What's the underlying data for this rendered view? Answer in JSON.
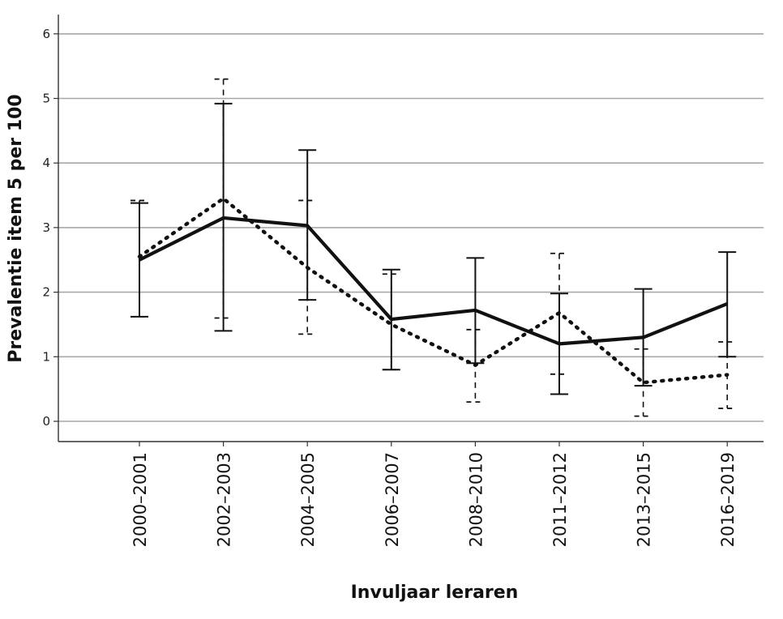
{
  "chart_data": {
    "type": "line",
    "xlabel": "Invuljaar leraren",
    "ylabel": "Prevalentie item 5 per 100",
    "categories": [
      "2000–2001",
      "2002–2003",
      "2004–2005",
      "2006–2007",
      "2008–2010",
      "2011–2012",
      "2013–2015",
      "2016–2019"
    ],
    "yticks": [
      0,
      1,
      2,
      3,
      4,
      5,
      6
    ],
    "ylim": [
      -0.3,
      6.3
    ],
    "grid": true,
    "series": [
      {
        "style": "solid",
        "values": [
          2.5,
          3.15,
          3.03,
          1.58,
          1.72,
          1.2,
          1.3,
          1.82
        ],
        "error_low": [
          1.62,
          1.4,
          1.88,
          0.8,
          0.9,
          0.42,
          0.55,
          1.0
        ],
        "error_high": [
          3.38,
          4.92,
          4.2,
          2.35,
          2.53,
          1.98,
          2.05,
          2.62
        ]
      },
      {
        "style": "dotted",
        "values": [
          2.55,
          3.45,
          2.38,
          1.5,
          0.87,
          1.68,
          0.6,
          0.72
        ],
        "error_low": [
          1.62,
          1.6,
          1.35,
          0.8,
          0.3,
          0.73,
          0.08,
          0.2
        ],
        "error_high": [
          3.42,
          5.3,
          3.42,
          2.28,
          1.42,
          2.6,
          1.12,
          1.23
        ]
      }
    ]
  }
}
